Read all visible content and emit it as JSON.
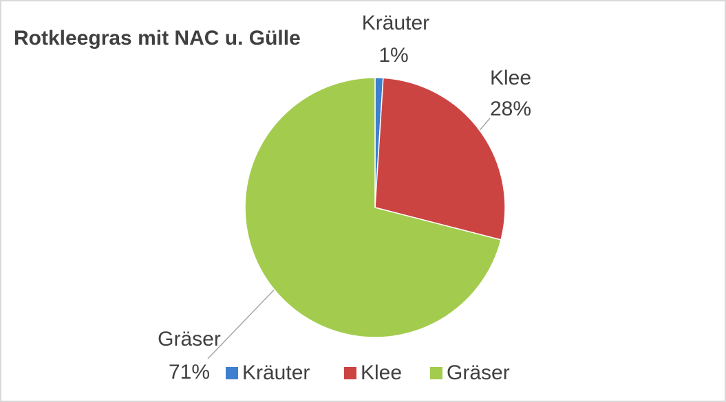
{
  "chart_data": {
    "type": "pie",
    "title": "Rotkleegras mit NAC u. Gülle",
    "categories": [
      "Kräuter",
      "Klee",
      "Gräser"
    ],
    "values": [
      1,
      28,
      71
    ],
    "value_labels": [
      "1%",
      "28%",
      "71%"
    ],
    "colors": [
      "#3f7fcf",
      "#cc4442",
      "#a3cc4e"
    ],
    "legend": "bottom"
  }
}
